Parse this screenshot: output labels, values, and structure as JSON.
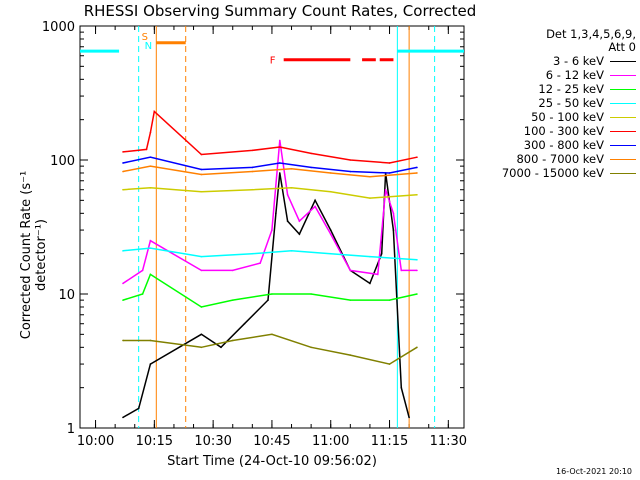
{
  "chart_data": {
    "type": "line",
    "title": "RHESSI Observing Summary Count Rates, Corrected",
    "xlabel": "Start Time (24-Oct-10 09:56:02)",
    "ylabel": "Corrected Count Rate (s⁻¹ detector⁻¹)",
    "y_scale": "log",
    "ylim": [
      1,
      1000
    ],
    "x_range": [
      "09:56:02",
      "11:34:00"
    ],
    "x_ticks": [
      "10:00",
      "10:15",
      "10:30",
      "10:45",
      "11:00",
      "11:15",
      "11:30"
    ],
    "y_ticks": [
      "1",
      "10",
      "100",
      "1000"
    ],
    "legend_header": [
      "Det 1,3,4,5,6,9,",
      "Att 0"
    ],
    "legend_placement": "right, outside plot",
    "markers": {
      "saa_label": "S",
      "night_label": "N",
      "flare_label": "F"
    },
    "timestamp": "16-Oct-2021 20:10",
    "series": [
      {
        "name": "3 - 6 keV",
        "color": "#000000",
        "values": [
          {
            "t": "10:07",
            "y": 1.2
          },
          {
            "t": "10:11",
            "y": 1.4
          },
          {
            "t": "10:14",
            "y": 3
          },
          {
            "t": "10:27",
            "y": 5
          },
          {
            "t": "10:32",
            "y": 4
          },
          {
            "t": "10:38",
            "y": 6
          },
          {
            "t": "10:44",
            "y": 9
          },
          {
            "t": "10:46",
            "y": 40
          },
          {
            "t": "10:47",
            "y": 80
          },
          {
            "t": "10:49",
            "y": 35
          },
          {
            "t": "10:52",
            "y": 28
          },
          {
            "t": "10:56",
            "y": 50
          },
          {
            "t": "11:00",
            "y": 30
          },
          {
            "t": "11:05",
            "y": 15
          },
          {
            "t": "11:10",
            "y": 12
          },
          {
            "t": "11:13",
            "y": 20
          },
          {
            "t": "11:14",
            "y": 80
          },
          {
            "t": "11:16",
            "y": 30
          },
          {
            "t": "11:18",
            "y": 2
          },
          {
            "t": "11:20",
            "y": 1.2
          }
        ]
      },
      {
        "name": "6 - 12 keV",
        "color": "#ff00ff",
        "values": [
          {
            "t": "10:07",
            "y": 12
          },
          {
            "t": "10:12",
            "y": 15
          },
          {
            "t": "10:14",
            "y": 25
          },
          {
            "t": "10:27",
            "y": 15
          },
          {
            "t": "10:35",
            "y": 15
          },
          {
            "t": "10:42",
            "y": 17
          },
          {
            "t": "10:45",
            "y": 30
          },
          {
            "t": "10:47",
            "y": 140
          },
          {
            "t": "10:49",
            "y": 55
          },
          {
            "t": "10:52",
            "y": 35
          },
          {
            "t": "10:56",
            "y": 45
          },
          {
            "t": "11:00",
            "y": 28
          },
          {
            "t": "11:05",
            "y": 15
          },
          {
            "t": "11:12",
            "y": 14
          },
          {
            "t": "11:14",
            "y": 60
          },
          {
            "t": "11:16",
            "y": 40
          },
          {
            "t": "11:18",
            "y": 15
          },
          {
            "t": "11:22",
            "y": 15
          }
        ]
      },
      {
        "name": "12 - 25 keV",
        "color": "#00ff00",
        "values": [
          {
            "t": "10:07",
            "y": 9
          },
          {
            "t": "10:12",
            "y": 10
          },
          {
            "t": "10:14",
            "y": 14
          },
          {
            "t": "10:27",
            "y": 8
          },
          {
            "t": "10:35",
            "y": 9
          },
          {
            "t": "10:45",
            "y": 10
          },
          {
            "t": "10:55",
            "y": 10
          },
          {
            "t": "11:05",
            "y": 9
          },
          {
            "t": "11:15",
            "y": 9
          },
          {
            "t": "11:22",
            "y": 10
          }
        ]
      },
      {
        "name": "25 - 50 keV",
        "color": "#00ffff",
        "values": [
          {
            "t": "10:07",
            "y": 21
          },
          {
            "t": "10:14",
            "y": 22
          },
          {
            "t": "10:27",
            "y": 19
          },
          {
            "t": "10:40",
            "y": 20
          },
          {
            "t": "10:50",
            "y": 21
          },
          {
            "t": "11:00",
            "y": 20
          },
          {
            "t": "11:10",
            "y": 19
          },
          {
            "t": "11:22",
            "y": 18
          }
        ]
      },
      {
        "name": "50 - 100 keV",
        "color": "#cccc00",
        "values": [
          {
            "t": "10:07",
            "y": 60
          },
          {
            "t": "10:14",
            "y": 62
          },
          {
            "t": "10:27",
            "y": 58
          },
          {
            "t": "10:40",
            "y": 60
          },
          {
            "t": "10:50",
            "y": 62
          },
          {
            "t": "11:00",
            "y": 58
          },
          {
            "t": "11:10",
            "y": 52
          },
          {
            "t": "11:22",
            "y": 55
          }
        ]
      },
      {
        "name": "100 - 300 keV",
        "color": "#ff0000",
        "values": [
          {
            "t": "10:07",
            "y": 115
          },
          {
            "t": "10:13",
            "y": 120
          },
          {
            "t": "10:14",
            "y": 160
          },
          {
            "t": "10:15",
            "y": 230
          },
          {
            "t": "10:27",
            "y": 110
          },
          {
            "t": "10:40",
            "y": 118
          },
          {
            "t": "10:47",
            "y": 125
          },
          {
            "t": "10:55",
            "y": 112
          },
          {
            "t": "11:05",
            "y": 100
          },
          {
            "t": "11:15",
            "y": 95
          },
          {
            "t": "11:22",
            "y": 105
          }
        ]
      },
      {
        "name": "300 - 800 keV",
        "color": "#0000ff",
        "values": [
          {
            "t": "10:07",
            "y": 95
          },
          {
            "t": "10:14",
            "y": 105
          },
          {
            "t": "10:27",
            "y": 85
          },
          {
            "t": "10:40",
            "y": 88
          },
          {
            "t": "10:47",
            "y": 95
          },
          {
            "t": "10:55",
            "y": 88
          },
          {
            "t": "11:05",
            "y": 82
          },
          {
            "t": "11:15",
            "y": 80
          },
          {
            "t": "11:22",
            "y": 88
          }
        ]
      },
      {
        "name": "800 - 7000 keV",
        "color": "#ff8000",
        "values": [
          {
            "t": "10:07",
            "y": 82
          },
          {
            "t": "10:14",
            "y": 90
          },
          {
            "t": "10:27",
            "y": 78
          },
          {
            "t": "10:40",
            "y": 82
          },
          {
            "t": "10:50",
            "y": 86
          },
          {
            "t": "11:00",
            "y": 80
          },
          {
            "t": "11:10",
            "y": 75
          },
          {
            "t": "11:22",
            "y": 80
          }
        ]
      },
      {
        "name": "7000 - 15000 keV",
        "color": "#808000",
        "values": [
          {
            "t": "10:07",
            "y": 4.5
          },
          {
            "t": "10:14",
            "y": 4.5
          },
          {
            "t": "10:27",
            "y": 4
          },
          {
            "t": "10:35",
            "y": 4.5
          },
          {
            "t": "10:45",
            "y": 5
          },
          {
            "t": "10:55",
            "y": 4
          },
          {
            "t": "11:05",
            "y": 3.5
          },
          {
            "t": "11:15",
            "y": 3
          },
          {
            "t": "11:22",
            "y": 4
          }
        ]
      }
    ],
    "shaded_intervals": [
      {
        "label": "night",
        "color": "#00ffff",
        "start": "09:56:02",
        "end": "10:06:00",
        "level": 650
      },
      {
        "label": "night",
        "color": "#00ffff",
        "start": "11:17:00",
        "end": "11:34:00",
        "level": 650
      },
      {
        "label": "saa",
        "color": "#ff8000",
        "start": "10:15:30",
        "end": "10:23:00",
        "level": 750
      },
      {
        "label": "flare",
        "color": "#ff0000",
        "start": "10:48:00",
        "end": "11:05:00",
        "level": 560
      },
      {
        "label": "flare",
        "color": "#ff0000",
        "start": "11:08:00",
        "end": "11:11:30",
        "level": 560
      },
      {
        "label": "flare",
        "color": "#ff0000",
        "start": "11:12:30",
        "end": "11:16:00",
        "level": 560
      }
    ],
    "vertical_lines": [
      {
        "time": "10:11:00",
        "color": "#00ffff",
        "style": "dashed"
      },
      {
        "time": "10:15:30",
        "color": "#ff8000",
        "style": "solid"
      },
      {
        "time": "10:23:00",
        "color": "#ff8000",
        "style": "dashed"
      },
      {
        "time": "11:17:00",
        "color": "#00ffff",
        "style": "solid"
      },
      {
        "time": "11:20:00",
        "color": "#ff8000",
        "style": "solid"
      },
      {
        "time": "11:26:30",
        "color": "#00ffff",
        "style": "dashed"
      }
    ]
  }
}
